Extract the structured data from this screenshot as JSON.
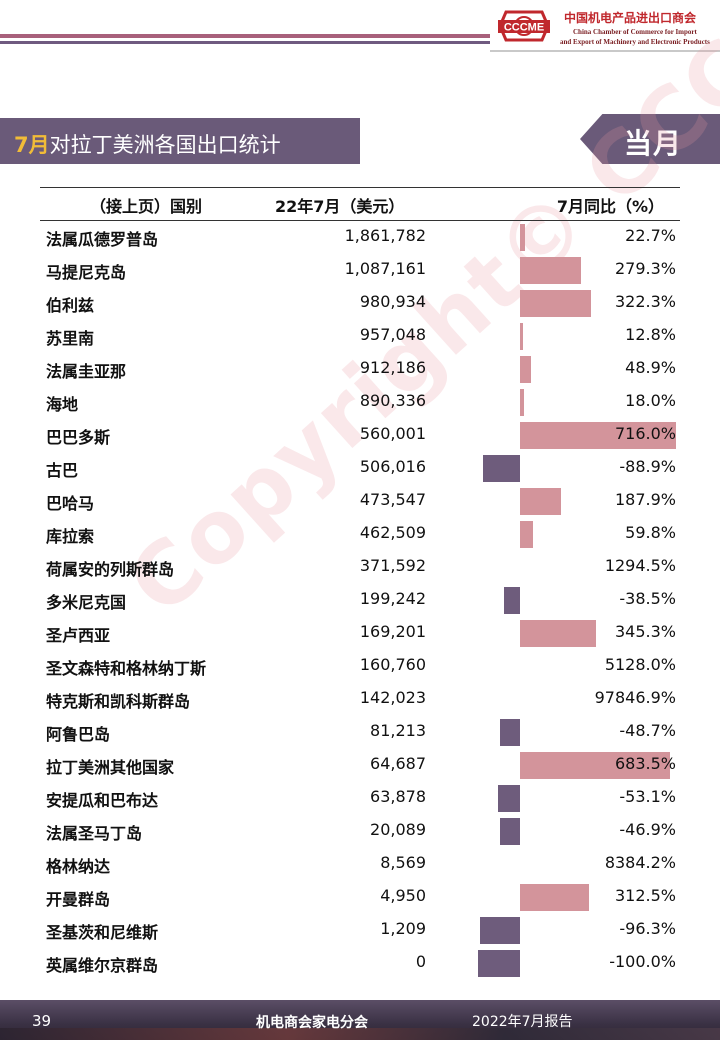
{
  "header": {
    "logo_mark": "CCCME",
    "logo_cn": "中国机电产品进出口商会",
    "logo_en_line1": "China Chamber of Commerce for Import",
    "logo_en_line2": "and Export of Machinery and Electronic Products",
    "colors": {
      "accent_pink": "#a8607b",
      "accent_purple": "#6a5a79",
      "logo_red": "#c0282d"
    }
  },
  "title": {
    "month": "7月",
    "text": "对拉丁美洲各国出口统计",
    "tag": "当月"
  },
  "table": {
    "columns": [
      "（接上页）国别",
      "22年7月（美元）",
      "7月同比（%）"
    ],
    "rows": [
      {
        "country": "法属瓜德罗普岛",
        "value": "1,861,782",
        "yoy": 22.7,
        "yoy_label": "22.7%"
      },
      {
        "country": "马提尼克岛",
        "value": "1,087,161",
        "yoy": 279.3,
        "yoy_label": "279.3%"
      },
      {
        "country": "伯利兹",
        "value": "980,934",
        "yoy": 322.3,
        "yoy_label": "322.3%"
      },
      {
        "country": "苏里南",
        "value": "957,048",
        "yoy": 12.8,
        "yoy_label": "12.8%"
      },
      {
        "country": "法属圭亚那",
        "value": "912,186",
        "yoy": 48.9,
        "yoy_label": "48.9%"
      },
      {
        "country": "海地",
        "value": "890,336",
        "yoy": 18.0,
        "yoy_label": "18.0%"
      },
      {
        "country": "巴巴多斯",
        "value": "560,001",
        "yoy": 716.0,
        "yoy_label": "716.0%"
      },
      {
        "country": "古巴",
        "value": "506,016",
        "yoy": -88.9,
        "yoy_label": "-88.9%"
      },
      {
        "country": "巴哈马",
        "value": "473,547",
        "yoy": 187.9,
        "yoy_label": "187.9%"
      },
      {
        "country": "库拉索",
        "value": "462,509",
        "yoy": 59.8,
        "yoy_label": "59.8%"
      },
      {
        "country": "荷属安的列斯群岛",
        "value": "371,592",
        "yoy": 1294.5,
        "yoy_label": "1294.5%"
      },
      {
        "country": "多米尼克国",
        "value": "199,242",
        "yoy": -38.5,
        "yoy_label": "-38.5%"
      },
      {
        "country": "圣卢西亚",
        "value": "169,201",
        "yoy": 345.3,
        "yoy_label": "345.3%"
      },
      {
        "country": "圣文森特和格林纳丁斯",
        "value": "160,760",
        "yoy": 5128.0,
        "yoy_label": "5128.0%"
      },
      {
        "country": "特克斯和凯科斯群岛",
        "value": "142,023",
        "yoy": 97846.9,
        "yoy_label": "97846.9%"
      },
      {
        "country": "阿鲁巴岛",
        "value": "81,213",
        "yoy": -48.7,
        "yoy_label": "-48.7%"
      },
      {
        "country": "拉丁美洲其他国家",
        "value": "64,687",
        "yoy": 683.5,
        "yoy_label": "683.5%"
      },
      {
        "country": "安提瓜和巴布达",
        "value": "63,878",
        "yoy": -53.1,
        "yoy_label": "-53.1%"
      },
      {
        "country": "法属圣马丁岛",
        "value": "20,089",
        "yoy": -46.9,
        "yoy_label": "-46.9%"
      },
      {
        "country": "格林纳达",
        "value": "8,569",
        "yoy": 8384.2,
        "yoy_label": "8384.2%"
      },
      {
        "country": "开曼群岛",
        "value": "4,950",
        "yoy": 312.5,
        "yoy_label": "312.5%"
      },
      {
        "country": "圣基茨和尼维斯",
        "value": "1,209",
        "yoy": -96.3,
        "yoy_label": "-96.3%"
      },
      {
        "country": "英属维尔京群岛",
        "value": "0",
        "yoy": -100.0,
        "yoy_label": "-100.0%"
      }
    ],
    "bar_colors": {
      "positive": "#d3949b",
      "negative": "#6e5c7c"
    }
  },
  "watermark": "Copyright© CCCME",
  "footer": {
    "page": "39",
    "org": "机电商会家电分会",
    "report": "2022年7月报告"
  }
}
